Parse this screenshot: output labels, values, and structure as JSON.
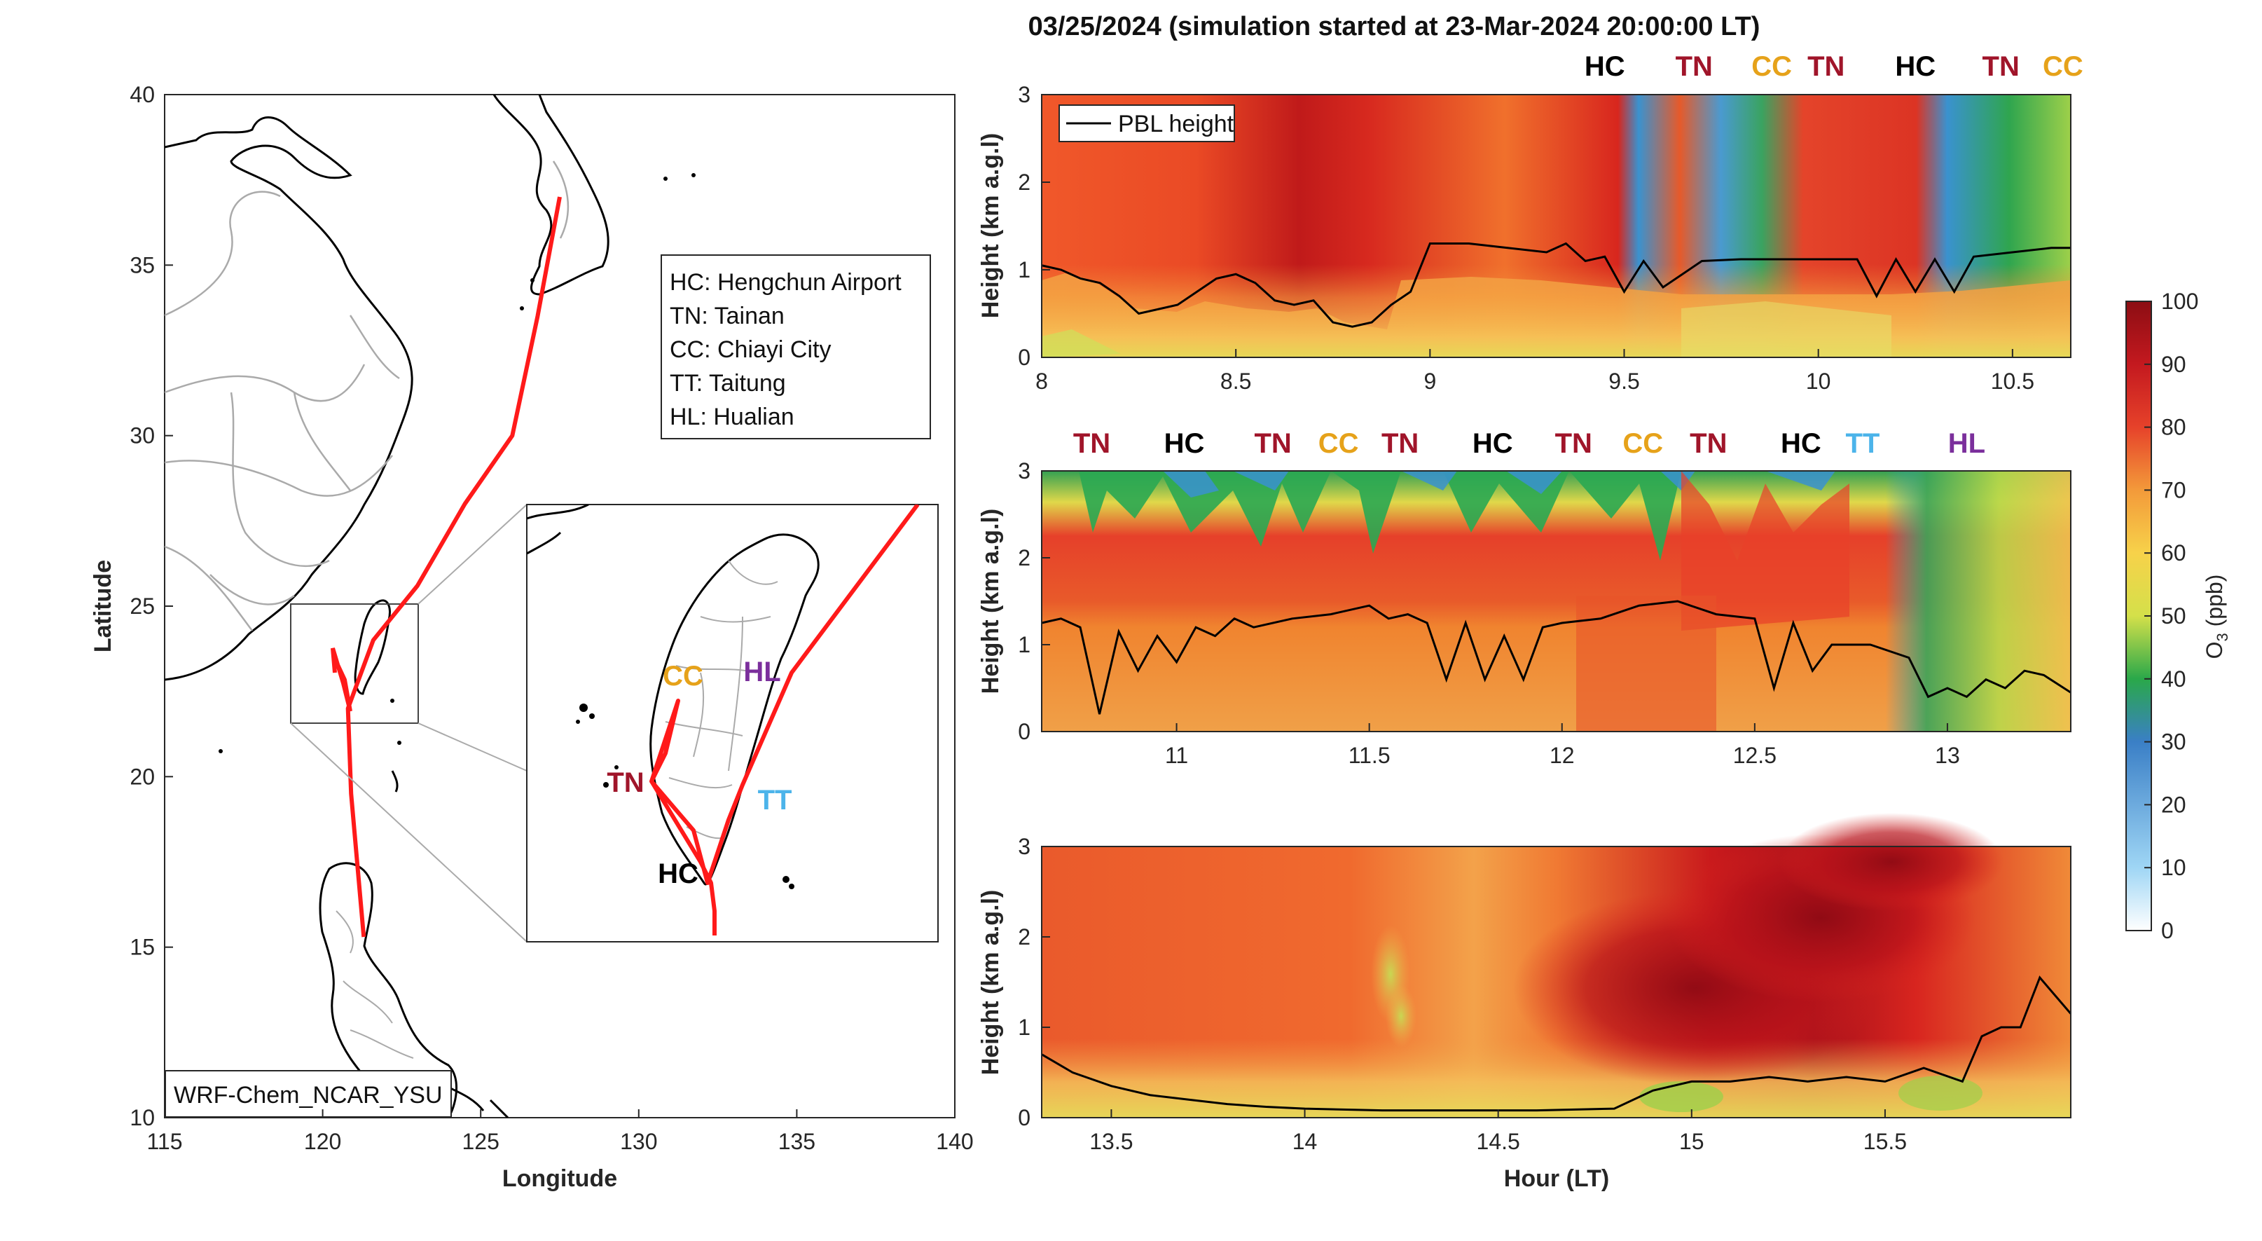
{
  "title": "03/25/2024 (simulation started at 23-Mar-2024 20:00:00 LT)",
  "colors": {
    "track": "#ff1a1a",
    "TN": "#a0152a",
    "HC": "#000000",
    "CC": "#e6a21a",
    "TT": "#4cb4ea",
    "HL": "#7b2f9c"
  },
  "map": {
    "xlabel": "Longitude",
    "ylabel": "Latitude",
    "xlim": [
      115,
      140
    ],
    "ylim": [
      10,
      40
    ],
    "xticks": [
      "115",
      "120",
      "125",
      "130",
      "135",
      "140"
    ],
    "yticks": [
      "10",
      "15",
      "20",
      "25",
      "30",
      "35",
      "40"
    ],
    "model_label": "WRF-Chem_NCAR_YSU",
    "legend": [
      "HC: Hengchun Airport",
      "TN: Tainan",
      "CC: Chiayi City",
      "TT: Taitung",
      "HL: Hualian"
    ],
    "track": [
      [
        121.3,
        15.3
      ],
      [
        120.9,
        19.5
      ],
      [
        120.8,
        22.0
      ],
      [
        121.6,
        24.0
      ],
      [
        123.0,
        25.6
      ],
      [
        124.5,
        28.0
      ],
      [
        126.0,
        30.0
      ],
      [
        126.8,
        33.5
      ],
      [
        127.5,
        37.0
      ]
    ],
    "inset_sites": [
      {
        "code": "CC",
        "color_key": "CC"
      },
      {
        "code": "HL",
        "color_key": "HL"
      },
      {
        "code": "TN",
        "color_key": "TN"
      },
      {
        "code": "TT",
        "color_key": "TT"
      },
      {
        "code": "HC",
        "color_key": "HC"
      }
    ]
  },
  "colorbar": {
    "label": "O3 (ppb)",
    "ticks": [
      "0",
      "10",
      "20",
      "30",
      "40",
      "50",
      "60",
      "70",
      "80",
      "90",
      "100"
    ],
    "range": [
      0,
      100
    ]
  },
  "chart_data": [
    {
      "type": "heatmap",
      "xlim": [
        8.0,
        10.65
      ],
      "ylim": [
        0,
        3
      ],
      "ylabel": "Height (km a.g.l)",
      "xticks": [
        "8",
        "8.5",
        "9",
        "9.5",
        "10",
        "10.5"
      ],
      "yticks": [
        "0",
        "1",
        "2",
        "3"
      ],
      "legend": "PBL height",
      "site_labels": [
        {
          "code": "HC",
          "x": 9.45
        },
        {
          "code": "TN",
          "x": 9.68
        },
        {
          "code": "CC",
          "x": 9.88
        },
        {
          "code": "TN",
          "x": 10.02
        },
        {
          "code": "HC",
          "x": 10.25
        },
        {
          "code": "TN",
          "x": 10.47
        },
        {
          "code": "CC",
          "x": 10.63
        }
      ],
      "pbl": {
        "x": [
          8.0,
          8.05,
          8.1,
          8.15,
          8.2,
          8.25,
          8.3,
          8.35,
          8.4,
          8.45,
          8.5,
          8.55,
          8.6,
          8.65,
          8.7,
          8.75,
          8.8,
          8.85,
          8.9,
          8.95,
          9.0,
          9.1,
          9.2,
          9.3,
          9.35,
          9.4,
          9.45,
          9.5,
          9.55,
          9.6,
          9.7,
          9.8,
          9.9,
          10.0,
          10.1,
          10.15,
          10.2,
          10.25,
          10.3,
          10.35,
          10.4,
          10.5,
          10.6,
          10.65
        ],
        "y": [
          1.05,
          1.0,
          0.9,
          0.85,
          0.7,
          0.5,
          0.55,
          0.6,
          0.75,
          0.9,
          0.95,
          0.85,
          0.65,
          0.6,
          0.65,
          0.4,
          0.35,
          0.4,
          0.6,
          0.75,
          1.3,
          1.3,
          1.25,
          1.2,
          1.3,
          1.1,
          1.15,
          0.75,
          1.1,
          0.8,
          1.1,
          1.12,
          1.12,
          1.12,
          1.12,
          0.7,
          1.12,
          0.75,
          1.12,
          0.75,
          1.15,
          1.2,
          1.25,
          1.25
        ]
      }
    },
    {
      "type": "heatmap",
      "xlim": [
        10.65,
        13.32
      ],
      "ylim": [
        0,
        3
      ],
      "ylabel": "Height (km a.g.l)",
      "xticks": [
        "11",
        "11.5",
        "12",
        "12.5",
        "13"
      ],
      "yticks": [
        "0",
        "1",
        "2",
        "3"
      ],
      "site_labels": [
        {
          "code": "TN",
          "x": 10.78
        },
        {
          "code": "HC",
          "x": 11.02
        },
        {
          "code": "TN",
          "x": 11.25
        },
        {
          "code": "CC",
          "x": 11.42
        },
        {
          "code": "TN",
          "x": 11.58
        },
        {
          "code": "HC",
          "x": 11.82
        },
        {
          "code": "TN",
          "x": 12.03
        },
        {
          "code": "CC",
          "x": 12.21
        },
        {
          "code": "TN",
          "x": 12.38
        },
        {
          "code": "HC",
          "x": 12.62
        },
        {
          "code": "TT",
          "x": 12.78
        },
        {
          "code": "HL",
          "x": 13.05
        }
      ],
      "pbl": {
        "x": [
          10.65,
          10.7,
          10.75,
          10.8,
          10.85,
          10.9,
          10.95,
          11.0,
          11.05,
          11.1,
          11.15,
          11.2,
          11.3,
          11.4,
          11.5,
          11.55,
          11.6,
          11.65,
          11.7,
          11.75,
          11.8,
          11.85,
          11.9,
          11.95,
          12.0,
          12.1,
          12.2,
          12.3,
          12.4,
          12.5,
          12.55,
          12.6,
          12.65,
          12.7,
          12.8,
          12.9,
          12.95,
          13.0,
          13.05,
          13.1,
          13.15,
          13.2,
          13.25,
          13.32
        ],
        "y": [
          1.25,
          1.3,
          1.2,
          0.2,
          1.15,
          0.7,
          1.1,
          0.8,
          1.2,
          1.1,
          1.3,
          1.2,
          1.3,
          1.35,
          1.45,
          1.3,
          1.35,
          1.25,
          0.6,
          1.25,
          0.6,
          1.1,
          0.6,
          1.2,
          1.25,
          1.3,
          1.45,
          1.5,
          1.35,
          1.3,
          0.5,
          1.25,
          0.7,
          1.0,
          1.0,
          0.85,
          0.4,
          0.5,
          0.4,
          0.6,
          0.5,
          0.7,
          0.65,
          0.45
        ]
      }
    },
    {
      "type": "heatmap",
      "xlim": [
        13.32,
        15.98
      ],
      "ylim": [
        0,
        3
      ],
      "ylabel": "Height (km a.g.l)",
      "xlabel": "Hour (LT)",
      "xticks": [
        "13.5",
        "14",
        "14.5",
        "15",
        "15.5"
      ],
      "yticks": [
        "0",
        "1",
        "2",
        "3"
      ],
      "pbl": {
        "x": [
          13.32,
          13.4,
          13.5,
          13.6,
          13.7,
          13.8,
          13.9,
          14.0,
          14.2,
          14.4,
          14.6,
          14.8,
          14.9,
          15.0,
          15.1,
          15.2,
          15.3,
          15.4,
          15.5,
          15.6,
          15.7,
          15.75,
          15.8,
          15.85,
          15.9,
          15.98
        ],
        "y": [
          0.7,
          0.5,
          0.35,
          0.25,
          0.2,
          0.15,
          0.12,
          0.1,
          0.08,
          0.08,
          0.08,
          0.1,
          0.3,
          0.4,
          0.4,
          0.45,
          0.4,
          0.45,
          0.4,
          0.55,
          0.4,
          0.9,
          1.0,
          1.0,
          1.55,
          1.15
        ]
      }
    }
  ]
}
